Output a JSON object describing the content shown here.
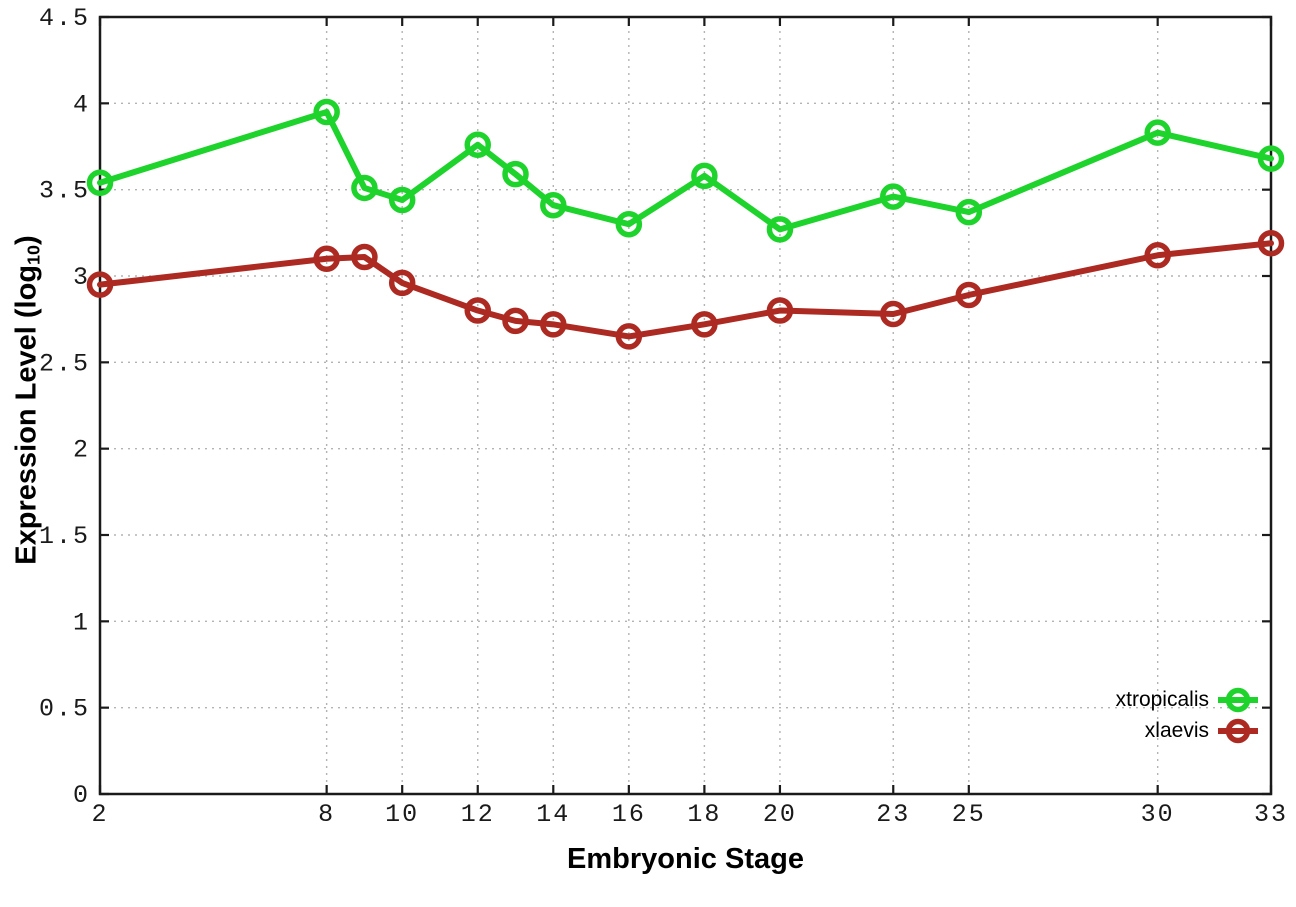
{
  "chart_data": {
    "type": "line",
    "title": "",
    "xlabel": "Embryonic Stage",
    "ylabel": {
      "base": "Expression Level (log",
      "subscript": "10",
      "close": ")"
    },
    "x": [
      2,
      8,
      9,
      10,
      12,
      13,
      14,
      16,
      18,
      20,
      23,
      25,
      30,
      33
    ],
    "series": [
      {
        "name": "xtropicalis",
        "color": "#1ed32b",
        "values": [
          3.54,
          3.95,
          3.51,
          3.44,
          3.76,
          3.59,
          3.41,
          3.3,
          3.58,
          3.27,
          3.46,
          3.37,
          3.83,
          3.68
        ]
      },
      {
        "name": "xlaevis",
        "color": "#ad2a23",
        "values": [
          2.95,
          3.1,
          3.11,
          2.96,
          2.8,
          2.74,
          2.72,
          2.65,
          2.72,
          2.8,
          2.78,
          2.89,
          3.12,
          3.19
        ]
      }
    ],
    "xlim": [
      2,
      33
    ],
    "ylim": [
      0,
      4.5
    ],
    "xticks": [
      2,
      8,
      10,
      12,
      14,
      16,
      18,
      20,
      23,
      25,
      30,
      33
    ],
    "yticks": [
      0,
      0.5,
      1,
      1.5,
      2,
      2.5,
      3,
      3.5,
      4,
      4.5
    ],
    "grid": true,
    "grid_style": "dotted",
    "legend_position": "bottom-right",
    "marker": "open-circle"
  },
  "colors": {
    "background": "#ffffff",
    "border": "#1a1a1a",
    "grid": "#b3b3b3",
    "text": "#1a1a1a"
  }
}
